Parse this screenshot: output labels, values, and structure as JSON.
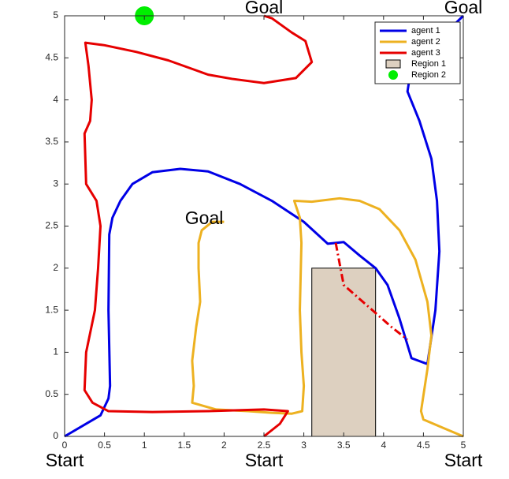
{
  "chart_data": {
    "type": "line",
    "xlim": [
      0,
      5
    ],
    "ylim": [
      0,
      5
    ],
    "xticks": [
      0,
      0.5,
      1,
      1.5,
      2,
      2.5,
      3,
      3.5,
      4,
      4.5,
      5
    ],
    "yticks": [
      0,
      0.5,
      1,
      1.5,
      2,
      2.5,
      3,
      3.5,
      4,
      4.5,
      5
    ],
    "legend_position": "northeast",
    "series": [
      {
        "name": "agent 1",
        "color": "#0000e6",
        "x": [
          0,
          0.45,
          0.55,
          0.57,
          0.55,
          0.56,
          0.6,
          0.7,
          0.85,
          1.1,
          1.45,
          1.8,
          2.2,
          2.6,
          3.0,
          3.3,
          3.5,
          3.7,
          3.9,
          4.05,
          4.2,
          4.35,
          4.55,
          4.65,
          4.7,
          4.67,
          4.6,
          4.45,
          4.3,
          4.35,
          5
        ],
        "y": [
          0,
          0.25,
          0.45,
          0.6,
          1.5,
          2.4,
          2.6,
          2.8,
          3.0,
          3.14,
          3.18,
          3.15,
          3.0,
          2.8,
          2.55,
          2.29,
          2.31,
          2.15,
          2.0,
          1.8,
          1.4,
          0.93,
          0.86,
          1.5,
          2.2,
          2.8,
          3.3,
          3.75,
          4.1,
          4.4,
          5
        ]
      },
      {
        "name": "agent 2",
        "color": "#edb120",
        "x": [
          5,
          4.75,
          4.5,
          4.47,
          4.55,
          4.6,
          4.55,
          4.4,
          4.2,
          3.95,
          3.7,
          3.45,
          3.1,
          2.88,
          2.95,
          2.97,
          2.95,
          2.97,
          3.0,
          2.98,
          2.85,
          2.6,
          2.3,
          1.9,
          1.6,
          1.62,
          1.6,
          1.65,
          1.7,
          1.68,
          1.68,
          1.72,
          1.85,
          2.0
        ],
        "y": [
          0,
          0.1,
          0.2,
          0.3,
          0.8,
          1.2,
          1.6,
          2.1,
          2.45,
          2.7,
          2.8,
          2.83,
          2.79,
          2.8,
          2.6,
          2.3,
          1.5,
          1.0,
          0.6,
          0.3,
          0.27,
          0.28,
          0.3,
          0.32,
          0.4,
          0.6,
          0.9,
          1.3,
          1.6,
          2.0,
          2.3,
          2.45,
          2.55,
          2.55
        ]
      },
      {
        "name": "agent 3",
        "color": "#e60000",
        "x": [
          2.5,
          2.7,
          2.8,
          2.5,
          1.8,
          1.1,
          0.55,
          0.35,
          0.25,
          0.27,
          0.38,
          0.42,
          0.45,
          0.4,
          0.27,
          0.25,
          0.32,
          0.34,
          0.3,
          0.26,
          0.5,
          0.9,
          1.3,
          1.8,
          2.1,
          2.5,
          2.9,
          3.1,
          3.02,
          2.85,
          2.6,
          2.5
        ],
        "y": [
          0,
          0.15,
          0.3,
          0.32,
          0.3,
          0.29,
          0.3,
          0.4,
          0.55,
          1.0,
          1.5,
          2.0,
          2.5,
          2.8,
          3.0,
          3.6,
          3.75,
          4.0,
          4.4,
          4.68,
          4.65,
          4.57,
          4.47,
          4.3,
          4.25,
          4.2,
          4.26,
          4.45,
          4.7,
          4.8,
          4.97,
          5.0
        ],
        "dashed": {
          "x": [
            3.4,
            3.5,
            3.8,
            4.1,
            4.3
          ],
          "y": [
            2.3,
            1.8,
            1.55,
            1.3,
            1.15
          ]
        }
      }
    ],
    "regions": [
      {
        "name": "Region 1",
        "shape": "rect",
        "color": "#ddd0c0",
        "x": [
          3.1,
          3.9
        ],
        "y": [
          0,
          2
        ]
      },
      {
        "name": "Region 2",
        "shape": "circle",
        "color": "#00ee00",
        "x": 1,
        "y": 5
      }
    ],
    "annotations": [
      {
        "text": "Goal",
        "x": 2.5,
        "y": 5
      },
      {
        "text": "Goal",
        "x": 5,
        "y": 5
      },
      {
        "text": "Goal",
        "x": 1.75,
        "y": 2.6
      },
      {
        "text": "Start",
        "x": 0,
        "y": 0
      },
      {
        "text": "Start",
        "x": 2.5,
        "y": 0
      },
      {
        "text": "Start",
        "x": 5,
        "y": 0
      }
    ]
  }
}
